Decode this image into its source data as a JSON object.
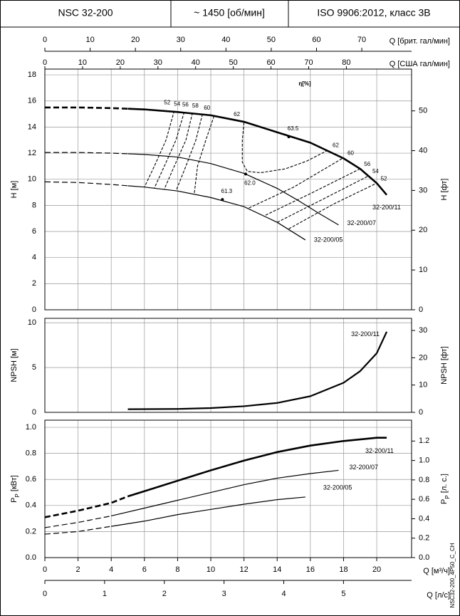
{
  "header": {
    "cells": [
      "NSC 32-200",
      "~ 1450 [об/мин]",
      "ISO 9906:2012, класс 3В"
    ]
  },
  "code": "NSC32-200_4P50_C_CH",
  "flow_axes": {
    "brit": {
      "label": "Q [брит. гал/мин]",
      "xlim": [
        0,
        81.0
      ],
      "xticks": [
        0,
        10,
        20,
        30,
        40,
        50,
        60,
        70
      ]
    },
    "us": {
      "label": "Q [США гал/мин]",
      "xlim": [
        0,
        97.3
      ],
      "xticks": [
        0,
        10,
        20,
        30,
        40,
        50,
        60,
        70,
        80
      ]
    },
    "m3h": {
      "label": "Q [м³/ч]",
      "xlim": [
        0,
        22.1
      ],
      "xticks": [
        0,
        2,
        4,
        6,
        8,
        10,
        12,
        14,
        16,
        18,
        20
      ]
    },
    "ls": {
      "label": "Q [л/с]",
      "xlim": [
        0,
        6.14
      ],
      "xticks": [
        0,
        1,
        2,
        3,
        4,
        5
      ]
    }
  },
  "chart_data": [
    {
      "type": "line",
      "ylabel": "H [м]",
      "y2label": "H [фт]",
      "grid": true,
      "ylim": [
        0,
        18.44
      ],
      "yticks": [
        0,
        2,
        4,
        6,
        8,
        10,
        12,
        14,
        16,
        18
      ],
      "y2lim": [
        0,
        60.5
      ],
      "y2ticks": [
        0,
        10,
        20,
        30,
        40,
        50
      ],
      "series": [
        {
          "name": "32-200/11",
          "color": "#000000",
          "segments": [
            {
              "style": "dashed",
              "x": [
                0,
                2,
                4,
                5
              ],
              "values": [
                15.5,
                15.5,
                15.45,
                15.4
              ]
            },
            {
              "style": "solid",
              "x": [
                5,
                6,
                8,
                10,
                12,
                14,
                16,
                18,
                19,
                20,
                20.6
              ],
              "values": [
                15.4,
                15.35,
                15.15,
                14.9,
                14.4,
                13.6,
                12.8,
                11.6,
                10.8,
                9.7,
                8.8
              ]
            }
          ]
        },
        {
          "name": "32-200/07",
          "color": "#000000",
          "segments": [
            {
              "style": "dashed",
              "x": [
                0,
                2,
                4,
                5
              ],
              "values": [
                12.05,
                12.05,
                12.0,
                11.95
              ]
            },
            {
              "style": "solid",
              "x": [
                5,
                6,
                8,
                10,
                12,
                14,
                15.3,
                16.5,
                17.7
              ],
              "values": [
                11.95,
                11.9,
                11.7,
                11.2,
                10.45,
                9.3,
                8.35,
                7.4,
                6.5
              ]
            }
          ]
        },
        {
          "name": "32-200/05",
          "color": "#000000",
          "segments": [
            {
              "style": "dashed",
              "x": [
                0,
                2,
                4,
                5
              ],
              "values": [
                9.8,
                9.75,
                9.6,
                9.5
              ]
            },
            {
              "style": "solid",
              "x": [
                5,
                6,
                8,
                10,
                12,
                14,
                15.7
              ],
              "values": [
                9.5,
                9.4,
                9.1,
                8.6,
                7.9,
                6.7,
                5.35
              ]
            }
          ]
        }
      ],
      "efficiency_label": "η[%]",
      "efficiency_contours": [
        {
          "value": 52,
          "x": [
            7.8,
            7.3,
            6.6,
            6.0
          ],
          "values": [
            15.25,
            13.0,
            11.0,
            9.4
          ]
        },
        {
          "value": 54,
          "x": [
            8.4,
            7.9,
            7.2,
            6.6
          ],
          "values": [
            15.15,
            13.0,
            11.0,
            9.33
          ]
        },
        {
          "value": 56,
          "x": [
            8.9,
            8.5,
            7.8,
            7.2
          ],
          "values": [
            15.1,
            13.0,
            11.0,
            9.25
          ]
        },
        {
          "value": 58,
          "x": [
            9.5,
            9.1,
            8.5,
            7.9
          ],
          "values": [
            15.0,
            13.0,
            11.0,
            9.1
          ]
        },
        {
          "value": 60,
          "x": [
            10.2,
            9.7,
            9.2,
            9.0
          ],
          "values": [
            14.85,
            13.0,
            11.0,
            8.85
          ]
        },
        {
          "value": 62,
          "x": [
            12.0,
            11.9,
            11.9,
            12.2,
            13.0,
            14.5,
            15.8,
            17.1
          ],
          "values": [
            14.35,
            13.0,
            11.3,
            10.6,
            10.5,
            10.8,
            11.4,
            12.25
          ]
        },
        {
          "value": 60,
          "x": [
            12.3,
            15.0,
            18.0
          ],
          "values": [
            7.8,
            9.4,
            11.65
          ]
        },
        {
          "value": 56,
          "x": [
            13.3,
            16.0,
            19.0
          ],
          "values": [
            7.25,
            8.9,
            10.8
          ]
        },
        {
          "value": 54,
          "x": [
            14.0,
            16.8,
            19.5
          ],
          "values": [
            6.7,
            8.5,
            10.25
          ]
        },
        {
          "value": 52,
          "x": [
            14.7,
            17.4,
            20.0
          ],
          "values": [
            6.2,
            8.1,
            9.7
          ]
        }
      ],
      "efficiency_points": [
        {
          "value": 63.5,
          "x": 14.7,
          "y": 13.25
        },
        {
          "value": 62.0,
          "label": "62.0",
          "x": 12.1,
          "y": 10.4
        },
        {
          "value": 61.3,
          "x": 10.7,
          "y": 8.45
        }
      ]
    },
    {
      "type": "line",
      "ylabel": "NPSH [м]",
      "y2label": "NPSH [фт]",
      "grid": true,
      "ylim": [
        0,
        10.5
      ],
      "yticks": [
        0,
        5,
        10
      ],
      "y2lim": [
        0,
        34.45
      ],
      "y2ticks": [
        0,
        10,
        20,
        30
      ],
      "series": [
        {
          "name": "32-200/11",
          "color": "#000000",
          "segments": [
            {
              "style": "solid",
              "x": [
                5,
                8,
                10,
                12,
                14,
                16,
                18,
                19,
                20,
                20.6
              ],
              "values": [
                0.35,
                0.38,
                0.48,
                0.68,
                1.05,
                1.8,
                3.3,
                4.6,
                6.6,
                9.0
              ]
            }
          ]
        }
      ]
    },
    {
      "type": "line",
      "ylabel": {
        "main": "P",
        "sub": "P",
        "unit": " [кВт]"
      },
      "y2label": {
        "main": "P",
        "sub": "P",
        "unit": " [л. с.]"
      },
      "grid": true,
      "ylim": [
        0,
        1.055
      ],
      "yticks": [
        {
          "value": 0,
          "label": "0.0"
        },
        0.2,
        0.4,
        0.6,
        0.8,
        {
          "value": 1,
          "label": "1.0"
        }
      ],
      "y2lim": [
        0,
        1.415
      ],
      "y2ticks": [
        {
          "value": 0,
          "label": "0.0"
        },
        0.2,
        0.4,
        0.6,
        0.8,
        {
          "value": 1,
          "label": "1.0"
        },
        1.2
      ],
      "series": [
        {
          "name": "32-200/11",
          "color": "#000000",
          "segments": [
            {
              "style": "dashed",
              "x": [
                0,
                2,
                4,
                5
              ],
              "values": [
                0.31,
                0.36,
                0.42,
                0.47
              ]
            },
            {
              "style": "solid",
              "x": [
                5,
                6,
                8,
                10,
                12,
                14,
                16,
                18,
                20,
                20.6
              ],
              "values": [
                0.47,
                0.51,
                0.59,
                0.67,
                0.745,
                0.81,
                0.86,
                0.895,
                0.92,
                0.92
              ]
            }
          ]
        },
        {
          "name": "32-200/07",
          "color": "#000000",
          "segments": [
            {
              "style": "dashed",
              "x": [
                0,
                2,
                4
              ],
              "values": [
                0.23,
                0.27,
                0.32
              ]
            },
            {
              "style": "solid",
              "x": [
                4,
                6,
                8,
                10,
                12,
                14,
                16,
                17.7
              ],
              "values": [
                0.32,
                0.38,
                0.44,
                0.5,
                0.56,
                0.61,
                0.645,
                0.67
              ]
            }
          ]
        },
        {
          "name": "32-200/05",
          "color": "#000000",
          "segments": [
            {
              "style": "dashed",
              "x": [
                0,
                2,
                4
              ],
              "values": [
                0.18,
                0.2,
                0.24
              ]
            },
            {
              "style": "solid",
              "x": [
                4,
                6,
                8,
                10,
                12,
                14,
                15.7
              ],
              "values": [
                0.24,
                0.28,
                0.33,
                0.37,
                0.41,
                0.445,
                0.465
              ]
            }
          ]
        }
      ]
    }
  ]
}
